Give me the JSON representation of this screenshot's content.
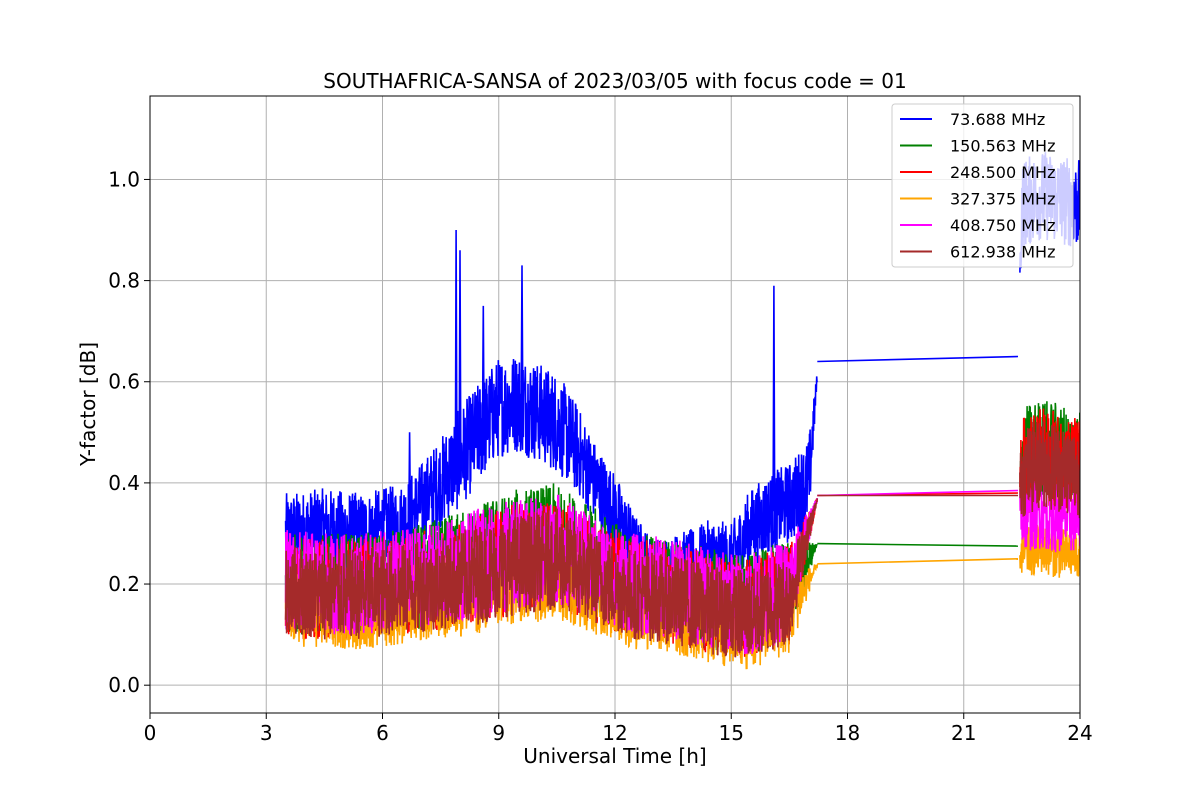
{
  "chart_data": {
    "type": "line",
    "title": "SOUTHAFRICA-SANSA of 2023/03/05 with focus code = 01",
    "xlabel": "Universal Time [h]",
    "ylabel": "Y-factor [dB]",
    "xlim": [
      0,
      24
    ],
    "ylim": [
      -0.055,
      1.165
    ],
    "xticks": [
      0,
      3,
      6,
      9,
      12,
      15,
      18,
      21,
      24
    ],
    "xtick_labels": [
      "0",
      "3",
      "6",
      "9",
      "12",
      "15",
      "18",
      "21",
      "24"
    ],
    "yticks": [
      0.0,
      0.2,
      0.4,
      0.6,
      0.8,
      1.0
    ],
    "ytick_labels": [
      "0.0",
      "0.2",
      "0.4",
      "0.6",
      "0.8",
      "1.0"
    ],
    "grid": true,
    "legend_position": "top-right",
    "series": [
      {
        "name": " 73.688 MHz",
        "color": "#0000ff",
        "x": [
          3.5,
          4.5,
          5.5,
          6.5,
          7.0,
          7.5,
          8.0,
          8.5,
          9.0,
          9.5,
          10.0,
          10.5,
          11.0,
          11.5,
          12.0,
          12.5,
          13.0,
          13.5,
          14.0,
          14.5,
          15.0,
          15.5,
          16.0,
          16.5,
          17.0,
          17.25,
          22.4,
          22.5,
          23.0,
          23.5,
          24.0
        ],
        "y": [
          0.3,
          0.31,
          0.3,
          0.32,
          0.36,
          0.4,
          0.45,
          0.5,
          0.55,
          0.56,
          0.54,
          0.52,
          0.47,
          0.4,
          0.34,
          0.27,
          0.22,
          0.23,
          0.24,
          0.26,
          0.25,
          0.31,
          0.34,
          0.36,
          0.4,
          0.64,
          0.65,
          0.95,
          0.97,
          0.96,
          0.95
        ],
        "band": [
          0.08,
          0.08,
          0.08,
          0.08,
          0.08,
          0.09,
          0.1,
          0.1,
          0.1,
          0.1,
          0.1,
          0.1,
          0.09,
          0.08,
          0.08,
          0.07,
          0.07,
          0.07,
          0.07,
          0.07,
          0.07,
          0.08,
          0.08,
          0.08,
          0.09,
          0.0,
          0.0,
          0.09,
          0.09,
          0.09,
          0.09
        ],
        "spikes": [
          [
            7.9,
            0.9
          ],
          [
            8.0,
            0.86
          ],
          [
            9.6,
            0.83
          ],
          [
            16.1,
            0.79
          ],
          [
            6.7,
            0.5
          ],
          [
            8.6,
            0.75
          ]
        ]
      },
      {
        "name": "150.563 MHz",
        "color": "#008000",
        "x": [
          3.5,
          4.5,
          5.5,
          6.5,
          7.5,
          8.5,
          9.5,
          10.5,
          11.5,
          12.5,
          13.5,
          14.5,
          15.5,
          16.5,
          17.25,
          22.4,
          22.5,
          23.0,
          23.5,
          24.0
        ],
        "y": [
          0.2,
          0.2,
          0.2,
          0.21,
          0.22,
          0.25,
          0.27,
          0.28,
          0.24,
          0.2,
          0.19,
          0.17,
          0.16,
          0.19,
          0.28,
          0.275,
          0.45,
          0.47,
          0.46,
          0.45
        ],
        "band": [
          0.1,
          0.1,
          0.1,
          0.1,
          0.11,
          0.11,
          0.12,
          0.12,
          0.11,
          0.1,
          0.1,
          0.1,
          0.1,
          0.1,
          0.0,
          0.0,
          0.1,
          0.1,
          0.1,
          0.1
        ]
      },
      {
        "name": "248.500 MHz",
        "color": "#ff0000",
        "x": [
          3.5,
          4.5,
          5.5,
          6.5,
          7.5,
          8.5,
          9.5,
          10.5,
          11.5,
          12.5,
          13.5,
          14.5,
          15.5,
          16.5,
          17.25,
          22.4,
          22.5,
          23.0,
          23.5,
          24.0
        ],
        "y": [
          0.19,
          0.19,
          0.19,
          0.2,
          0.21,
          0.23,
          0.25,
          0.26,
          0.22,
          0.19,
          0.18,
          0.16,
          0.15,
          0.18,
          0.375,
          0.38,
          0.43,
          0.45,
          0.44,
          0.43
        ],
        "band": [
          0.1,
          0.1,
          0.1,
          0.1,
          0.1,
          0.11,
          0.11,
          0.11,
          0.1,
          0.1,
          0.1,
          0.1,
          0.1,
          0.1,
          0.0,
          0.0,
          0.1,
          0.1,
          0.1,
          0.1
        ]
      },
      {
        "name": "327.375 MHz",
        "color": "#ffa500",
        "x": [
          3.5,
          4.5,
          5.5,
          6.5,
          7.5,
          8.5,
          9.5,
          10.5,
          11.5,
          12.5,
          13.5,
          14.5,
          15.5,
          16.5,
          17.25,
          22.4,
          22.5,
          23.0,
          23.5,
          24.0
        ],
        "y": [
          0.16,
          0.15,
          0.15,
          0.16,
          0.17,
          0.19,
          0.21,
          0.22,
          0.18,
          0.15,
          0.14,
          0.12,
          0.11,
          0.14,
          0.24,
          0.25,
          0.26,
          0.27,
          0.26,
          0.26
        ],
        "band": [
          0.08,
          0.08,
          0.08,
          0.08,
          0.08,
          0.09,
          0.09,
          0.09,
          0.08,
          0.08,
          0.08,
          0.08,
          0.08,
          0.08,
          0.0,
          0.0,
          0.05,
          0.05,
          0.05,
          0.05
        ]
      },
      {
        "name": "408.750 MHz",
        "color": "#ff00ff",
        "x": [
          3.5,
          4.5,
          5.5,
          6.5,
          7.5,
          8.5,
          9.5,
          10.5,
          11.5,
          12.5,
          13.5,
          14.5,
          15.5,
          16.5,
          17.25,
          22.4,
          22.5,
          23.0,
          23.5,
          24.0
        ],
        "y": [
          0.21,
          0.2,
          0.2,
          0.21,
          0.22,
          0.24,
          0.26,
          0.27,
          0.23,
          0.2,
          0.19,
          0.17,
          0.16,
          0.19,
          0.375,
          0.385,
          0.33,
          0.34,
          0.33,
          0.33
        ],
        "band": [
          0.1,
          0.1,
          0.1,
          0.1,
          0.1,
          0.11,
          0.11,
          0.11,
          0.1,
          0.1,
          0.1,
          0.1,
          0.1,
          0.1,
          0.0,
          0.0,
          0.07,
          0.07,
          0.07,
          0.07
        ]
      },
      {
        "name": "612.938 MHz",
        "color": "#a52a2a",
        "x": [
          3.5,
          4.5,
          5.5,
          6.5,
          7.5,
          8.5,
          9.5,
          10.5,
          11.5,
          12.5,
          13.5,
          14.5,
          15.5,
          16.5,
          17.25,
          22.4,
          22.5,
          23.0,
          23.5,
          24.0
        ],
        "y": [
          0.19,
          0.18,
          0.18,
          0.19,
          0.2,
          0.22,
          0.24,
          0.25,
          0.21,
          0.18,
          0.17,
          0.15,
          0.14,
          0.17,
          0.375,
          0.375,
          0.42,
          0.44,
          0.43,
          0.42
        ],
        "band": [
          0.09,
          0.09,
          0.09,
          0.09,
          0.09,
          0.1,
          0.1,
          0.1,
          0.09,
          0.09,
          0.09,
          0.09,
          0.09,
          0.09,
          0.0,
          0.0,
          0.09,
          0.09,
          0.09,
          0.09
        ]
      }
    ]
  }
}
